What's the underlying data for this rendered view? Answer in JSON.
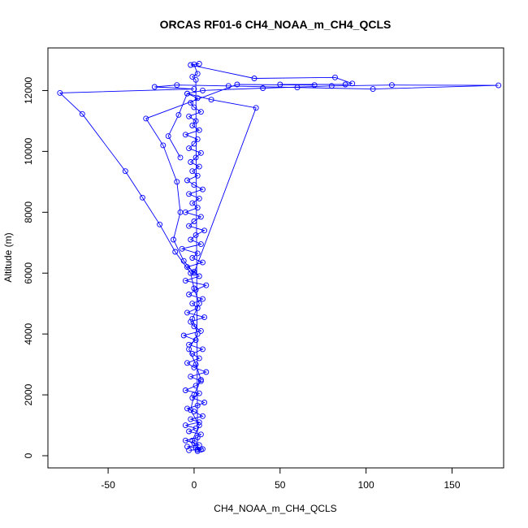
{
  "chart_data": {
    "type": "scatter",
    "title": "ORCAS RF01-6 CH4_NOAA_m_CH4_QCLS",
    "xlabel": "CH4_NOAA_m_CH4_QCLS",
    "ylabel": "Altitude (m)",
    "xlim": [
      -85,
      180
    ],
    "ylim": [
      -400,
      13400
    ],
    "xticks": [
      -50,
      0,
      50,
      100,
      150
    ],
    "yticks": [
      0,
      2000,
      4000,
      6000,
      8000,
      10000,
      12000
    ],
    "grid": false,
    "legend": "none",
    "marker": "open-circle",
    "connected": true,
    "color": "#0000ff",
    "series": [
      {
        "values": [
          [
            2,
            150
          ],
          [
            4,
            200
          ],
          [
            -3,
            180
          ],
          [
            5,
            220
          ],
          [
            1,
            260
          ],
          [
            -4,
            300
          ],
          [
            3,
            350
          ],
          [
            0,
            420
          ],
          [
            -5,
            500
          ],
          [
            2,
            600
          ],
          [
            4,
            700
          ],
          [
            -3,
            800
          ],
          [
            1,
            900
          ],
          [
            -5,
            1000
          ],
          [
            3,
            1100
          ],
          [
            -2,
            1200
          ],
          [
            5,
            1300
          ],
          [
            0,
            1450
          ],
          [
            -4,
            1550
          ],
          [
            2,
            1650
          ],
          [
            6,
            1750
          ],
          [
            -1,
            1900
          ],
          [
            3,
            2050
          ],
          [
            -5,
            2150
          ],
          [
            1,
            2300
          ],
          [
            4,
            2450
          ],
          [
            -2,
            2600
          ],
          [
            7,
            2750
          ],
          [
            0,
            2900
          ],
          [
            -4,
            3050
          ],
          [
            3,
            3200
          ],
          [
            -1,
            3350
          ],
          [
            5,
            3500
          ],
          [
            -3,
            3650
          ],
          [
            1,
            3800
          ],
          [
            -6,
            3950
          ],
          [
            4,
            4100
          ],
          [
            0,
            4250
          ],
          [
            -2,
            4400
          ],
          [
            6,
            4550
          ],
          [
            -4,
            4700
          ],
          [
            2,
            4850
          ],
          [
            -1,
            5000
          ],
          [
            5,
            5150
          ],
          [
            -3,
            5300
          ],
          [
            1,
            5450
          ],
          [
            7,
            5600
          ],
          [
            -5,
            5750
          ],
          [
            3,
            5900
          ],
          [
            0,
            6050
          ],
          [
            -4,
            6200
          ],
          [
            5,
            6350
          ],
          [
            -1,
            6500
          ],
          [
            2,
            6650
          ],
          [
            -7,
            6800
          ],
          [
            4,
            6950
          ],
          [
            -2,
            7100
          ],
          [
            1,
            7250
          ],
          [
            6,
            7400
          ],
          [
            -3,
            7550
          ],
          [
            0,
            7700
          ],
          [
            4,
            7850
          ],
          [
            -5,
            8000
          ],
          [
            2,
            8150
          ],
          [
            -1,
            8300
          ],
          [
            3,
            8450
          ],
          [
            -3,
            8600
          ],
          [
            5,
            8750
          ],
          [
            0,
            8900
          ],
          [
            -4,
            9050
          ],
          [
            2,
            9200
          ],
          [
            -1,
            9350
          ],
          [
            3,
            9500
          ],
          [
            -2,
            9650
          ],
          [
            1,
            9800
          ],
          [
            4,
            9950
          ],
          [
            -3,
            10100
          ],
          [
            0,
            10250
          ],
          [
            2,
            10400
          ],
          [
            -5,
            10550
          ],
          [
            3,
            10700
          ],
          [
            -1,
            10850
          ],
          [
            1,
            11000
          ],
          [
            -3,
            11150
          ],
          [
            4,
            11300
          ],
          [
            0,
            11450
          ],
          [
            -2,
            11600
          ],
          [
            2,
            11750
          ],
          [
            -4,
            11900
          ],
          [
            5,
            12000
          ],
          [
            40,
            12080
          ],
          [
            80,
            12150
          ],
          [
            115,
            12180
          ],
          [
            177,
            12170
          ],
          [
            104,
            12050
          ],
          [
            60,
            12100
          ],
          [
            20,
            12150
          ],
          [
            -10,
            12180
          ],
          [
            -23,
            12120
          ],
          [
            0,
            12050
          ],
          [
            -78,
            11920
          ],
          [
            -65,
            11230
          ],
          [
            -40,
            9350
          ],
          [
            -30,
            8480
          ],
          [
            -20,
            7600
          ],
          [
            -11,
            6700
          ],
          [
            -2,
            6000
          ],
          [
            0,
            5500
          ],
          [
            3,
            5000
          ],
          [
            -1,
            4500
          ],
          [
            2,
            4000
          ],
          [
            -3,
            3500
          ],
          [
            1,
            3000
          ],
          [
            4,
            2500
          ],
          [
            0,
            2000
          ],
          [
            -2,
            1500
          ],
          [
            3,
            1000
          ],
          [
            -1,
            500
          ],
          [
            2,
            200
          ],
          [
            1,
            12350
          ],
          [
            -1,
            12450
          ],
          [
            2,
            12550
          ],
          [
            0,
            12860
          ],
          [
            3,
            12880
          ],
          [
            -2,
            12840
          ],
          [
            35,
            12400
          ],
          [
            82,
            12430
          ],
          [
            92,
            12230
          ],
          [
            88,
            12200
          ],
          [
            50,
            12200
          ],
          [
            70,
            12180
          ],
          [
            25,
            12200
          ],
          [
            -28,
            11080
          ],
          [
            -18,
            10200
          ],
          [
            -10,
            9000
          ],
          [
            -8,
            8000
          ],
          [
            -12,
            7100
          ],
          [
            -6,
            6400
          ],
          [
            0,
            6000
          ],
          [
            36,
            11430
          ],
          [
            10,
            11700
          ],
          [
            -4,
            11900
          ],
          [
            -9,
            11200
          ],
          [
            -15,
            10500
          ],
          [
            -8,
            9800
          ]
        ]
      }
    ]
  }
}
